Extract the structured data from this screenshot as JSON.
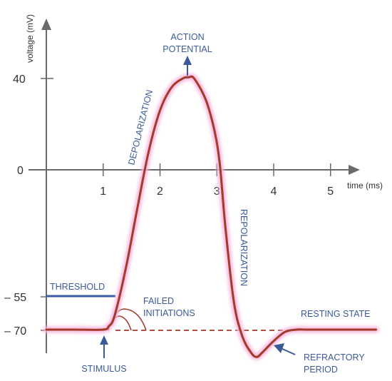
{
  "chart_data": {
    "type": "line",
    "xlabel": "time (ms)",
    "ylabel": "voltage (mV)",
    "xlim": [
      0,
      5.8
    ],
    "ylim": [
      -82,
      60
    ],
    "x_ticks": [
      1,
      2,
      3,
      4,
      5
    ],
    "x_tick_labels": [
      "1",
      "2",
      "3",
      "4",
      "5"
    ],
    "y_ticks": [
      40,
      0,
      -55,
      -70
    ],
    "y_tick_labels": [
      "40",
      "0",
      "– 55",
      "– 70"
    ],
    "grid": false,
    "threshold": -55,
    "resting": -70,
    "series": [
      {
        "name": "",
        "x": [
          0,
          0.5,
          1.0,
          1.1,
          1.2,
          1.4,
          1.6,
          1.8,
          2.0,
          2.2,
          2.4,
          2.5,
          2.6,
          2.8,
          2.95,
          3.05,
          3.15,
          3.3,
          3.45,
          3.6,
          3.7,
          3.8,
          4.0,
          4.2,
          4.4,
          4.6,
          5.0,
          5.8
        ],
        "y": [
          -70,
          -70,
          -70,
          -68.5,
          -64,
          -43,
          -17,
          8,
          26,
          36,
          40,
          40.5,
          40,
          31,
          18,
          3,
          -25,
          -58,
          -73,
          -80,
          -82,
          -80,
          -75,
          -71,
          -70,
          -70,
          -70,
          -70
        ]
      }
    ],
    "annotations": [
      {
        "text_lines": [
          "ACTION",
          "POTENTIAL"
        ],
        "at": [
          2.5,
          40.5
        ],
        "arrow": "up"
      },
      {
        "text": "DEPOLARIZATION",
        "orientation": "rotated"
      },
      {
        "text": "REPOLARIZATION",
        "orientation": "vertical"
      },
      {
        "text": "THRESHOLD",
        "at": [
          0.6,
          -55
        ]
      },
      {
        "text_lines": [
          "FAILED",
          "INITIATIONS"
        ],
        "at": [
          1.5,
          -60
        ]
      },
      {
        "text": "RESTING STATE",
        "at": [
          4.8,
          -70
        ]
      },
      {
        "text_lines": [
          "REFRACTORY",
          "PERIOD"
        ],
        "at": [
          3.7,
          -82
        ],
        "arrow": "points-to-undershoot"
      },
      {
        "text": "STIMULUS",
        "at": [
          1.0,
          -70
        ],
        "arrow": "up"
      }
    ]
  },
  "colors": {
    "curve": "#a33a2a",
    "curve_glow": "#f6b8e0",
    "axis": "#6a6a6a",
    "annotation": "#3a5a9a",
    "threshold_line": "#3b5ba9",
    "resting_line": "#a33a2a",
    "text": "#333333"
  }
}
